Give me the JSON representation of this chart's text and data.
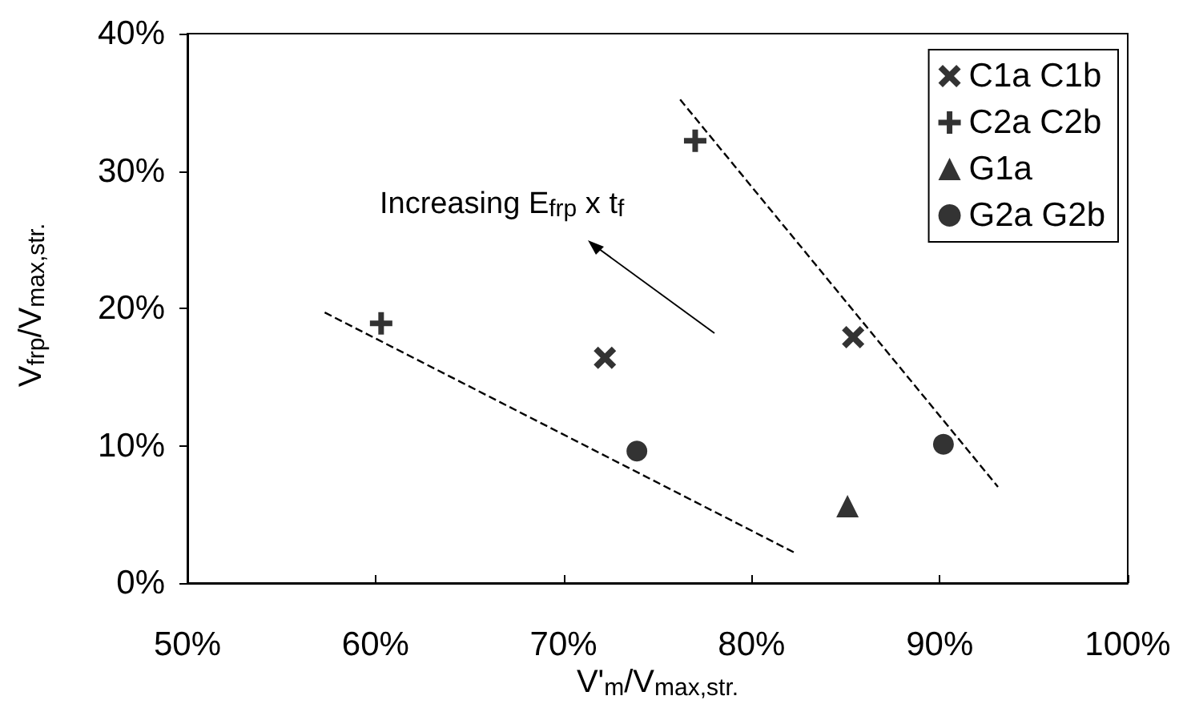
{
  "chart_data": {
    "type": "scatter",
    "xlabel": "V'$_{m}$/V$_{max,str.}$",
    "ylabel": "V$_{frp}$/V$_{max,str.}$",
    "annotations": [
      "Increasing E$_{frp}$ x t$_{f}$"
    ],
    "xlim": [
      50,
      100
    ],
    "xticks": [
      {
        "value": 50,
        "label": "50%"
      },
      {
        "value": 60,
        "label": "60%"
      },
      {
        "value": 70,
        "label": "70%"
      },
      {
        "value": 80,
        "label": "80%"
      },
      {
        "value": 90,
        "label": "90%"
      },
      {
        "value": 100,
        "label": "100%"
      }
    ],
    "ylim": [
      0,
      40
    ],
    "yticks": [
      {
        "value": 0,
        "label": "0%"
      },
      {
        "value": 10,
        "label": "10%"
      },
      {
        "value": 20,
        "label": "20%"
      },
      {
        "value": 30,
        "label": "30%"
      },
      {
        "value": 40,
        "label": "40%"
      }
    ],
    "grid": false,
    "legend": "top right",
    "series": [
      {
        "name": "C1a C1b",
        "color": "#000000",
        "marker": "x",
        "x": [
          72.2,
          85.4
        ],
        "values": [
          16.4,
          17.9
        ]
      },
      {
        "name": "C2a C2b",
        "color": "#000000",
        "marker": "cross",
        "x": [
          60.3,
          77.0
        ],
        "values": [
          18.9,
          32.2
        ]
      },
      {
        "name": "G1a",
        "color": "#000000",
        "marker": "triangle",
        "x": [
          85.1
        ],
        "values": [
          5.6
        ]
      },
      {
        "name": "G2a G2b",
        "color": "#000000",
        "marker": "circle",
        "x": [
          73.9,
          90.2
        ],
        "values": [
          9.6,
          10.1
        ]
      },
      {
        "type": "line",
        "color": "#000000",
        "marker": "none",
        "line_style": "dashed",
        "x": [
          57.3,
          82.3
        ],
        "values": [
          19.7,
          2.2
        ]
      },
      {
        "type": "line",
        "color": "#000000",
        "marker": "none",
        "line_style": "dashed",
        "x": [
          76.2,
          93.1
        ],
        "values": [
          35.2,
          7.0
        ]
      }
    ]
  }
}
